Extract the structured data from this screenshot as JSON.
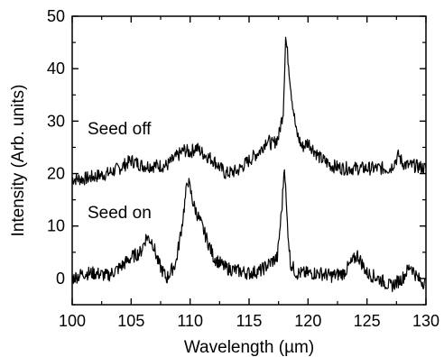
{
  "chart_data": {
    "type": "line",
    "xlabel": "Wavelength (µm)",
    "ylabel": "Intensity (Arb. units)",
    "xlim": [
      100,
      130
    ],
    "ylim": [
      -5,
      50
    ],
    "xticks": [
      "100",
      "105",
      "110",
      "115",
      "120",
      "125",
      "130"
    ],
    "yticks": [
      "0",
      "10",
      "20",
      "30",
      "40",
      "50"
    ],
    "grid": false,
    "legend": "none",
    "colors": {
      "line": "#000000",
      "axis": "#000000"
    },
    "annotations": [
      {
        "text": "Seed off",
        "x": 101.3,
        "y": 27.5
      },
      {
        "text": "Seed on",
        "x": 101.3,
        "y": 11.5
      }
    ],
    "series": [
      {
        "x": [
          100,
          101,
          102,
          103,
          104,
          105,
          106,
          107,
          108,
          108.5,
          109,
          109.5,
          110,
          110.5,
          111,
          112,
          113,
          114,
          115,
          116,
          116.5,
          117,
          117.5,
          117.9,
          118.1,
          118.3,
          118.6,
          119,
          119.5,
          120,
          120.5,
          121,
          122,
          123,
          124,
          125,
          126,
          127,
          127.7,
          128,
          128.5,
          129,
          130
        ],
        "y": [
          19,
          19,
          19.5,
          20,
          21,
          22.5,
          21.5,
          21.5,
          21.5,
          22.5,
          23.5,
          24.5,
          24,
          25,
          24,
          22.5,
          20,
          20.5,
          22.5,
          24.5,
          26.5,
          25.5,
          27,
          32,
          46,
          42,
          35,
          28,
          25,
          26,
          24.5,
          23,
          21.5,
          21,
          21,
          21,
          21,
          21,
          23.5,
          22,
          21.5,
          21.5,
          21
        ]
      },
      {
        "x": [
          100,
          101,
          102,
          103,
          104,
          105,
          105.8,
          106.3,
          106.8,
          107.3,
          108,
          108.8,
          109.3,
          109.8,
          110.3,
          111,
          112,
          113,
          114,
          115,
          116,
          116.8,
          117.4,
          117.8,
          118.0,
          118.2,
          118.5,
          119,
          120,
          121,
          122,
          123,
          123.7,
          124.2,
          125,
          126,
          127,
          128,
          128.7,
          129.3,
          130
        ],
        "y": [
          0,
          1,
          1,
          0.5,
          2,
          4,
          5,
          8,
          7,
          3,
          0,
          3,
          10,
          19,
          14,
          10,
          4,
          2,
          1.5,
          1,
          1.5,
          3,
          4,
          14,
          22,
          12,
          3,
          1,
          1,
          1,
          0.5,
          1,
          3,
          4.5,
          1,
          0,
          -1.5,
          0,
          2.5,
          0,
          -1
        ]
      }
    ]
  }
}
